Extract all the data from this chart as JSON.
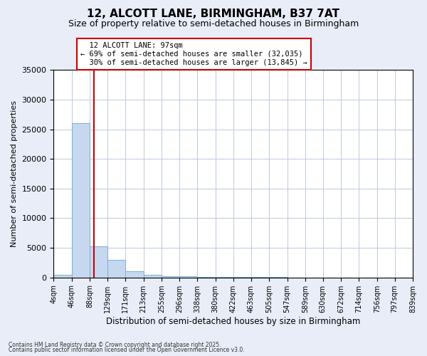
{
  "title": "12, ALCOTT LANE, BIRMINGHAM, B37 7AT",
  "subtitle": "Size of property relative to semi-detached houses in Birmingham",
  "xlabel": "Distribution of semi-detached houses by size in Birmingham",
  "ylabel": "Number of semi-detached properties",
  "bin_edges": [
    4,
    46,
    88,
    129,
    171,
    213,
    255,
    296,
    338,
    380,
    422,
    463,
    505,
    547,
    589,
    630,
    672,
    714,
    756,
    797,
    839
  ],
  "bar_heights": [
    400,
    26000,
    5200,
    3000,
    1100,
    500,
    250,
    150,
    100,
    80,
    60,
    40,
    30,
    25,
    20,
    15,
    12,
    10,
    8,
    6
  ],
  "bar_color": "#c5d8f0",
  "bar_edge_color": "#7aaed6",
  "property_size": 97,
  "property_label": "12 ALCOTT LANE: 97sqm",
  "pct_smaller": 69,
  "n_smaller": 32035,
  "pct_larger": 30,
  "n_larger": 13845,
  "vline_color": "#cc0000",
  "ylim": [
    0,
    35000
  ],
  "yticks": [
    0,
    5000,
    10000,
    15000,
    20000,
    25000,
    30000,
    35000
  ],
  "tick_labels": [
    "4sqm",
    "46sqm",
    "88sqm",
    "129sqm",
    "171sqm",
    "213sqm",
    "255sqm",
    "296sqm",
    "338sqm",
    "380sqm",
    "422sqm",
    "463sqm",
    "505sqm",
    "547sqm",
    "589sqm",
    "630sqm",
    "672sqm",
    "714sqm",
    "756sqm",
    "797sqm",
    "839sqm"
  ],
  "footnote1": "Contains HM Land Registry data © Crown copyright and database right 2025.",
  "footnote2": "Contains public sector information licensed under the Open Government Licence v3.0.",
  "bg_color": "#e8edf8",
  "plot_bg_color": "#ffffff"
}
